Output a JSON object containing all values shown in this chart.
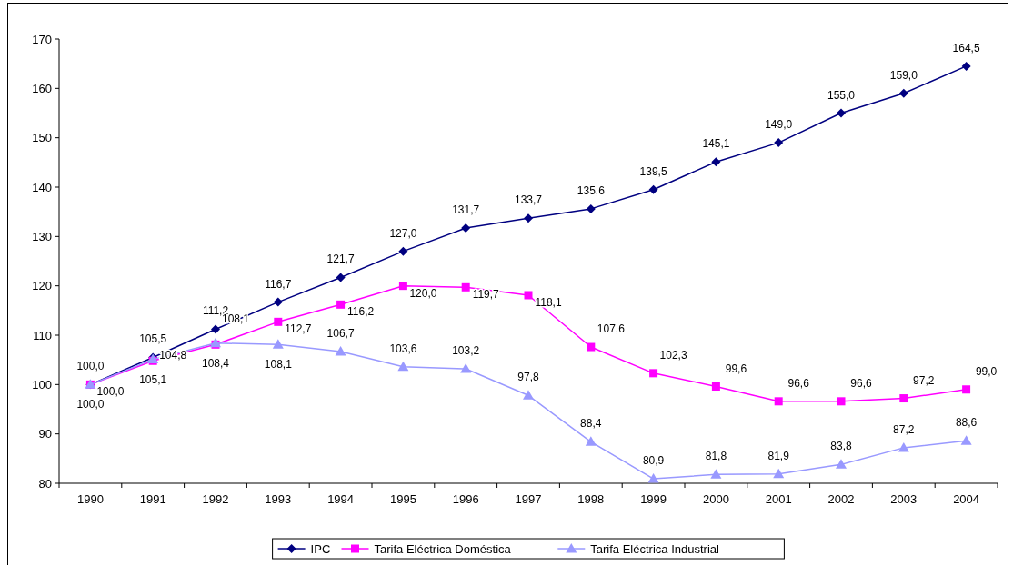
{
  "chart_data": {
    "type": "line",
    "categories": [
      "1990",
      "1991",
      "1992",
      "1993",
      "1994",
      "1995",
      "1996",
      "1997",
      "1998",
      "1999",
      "2000",
      "2001",
      "2002",
      "2003",
      "2004"
    ],
    "ylim": [
      80,
      170
    ],
    "yticks": [
      80,
      90,
      100,
      110,
      120,
      130,
      140,
      150,
      160,
      170
    ],
    "grid": false,
    "legend": "bottom",
    "series": [
      {
        "name": "IPC",
        "color": "#000080",
        "marker": "diamond",
        "values": [
          100.0,
          105.5,
          111.2,
          116.7,
          121.7,
          127.0,
          131.7,
          133.7,
          135.6,
          139.5,
          145.1,
          149.0,
          155.0,
          159.0,
          164.5
        ],
        "value_labels": [
          "100,0",
          "105,5",
          "111,2",
          "116,7",
          "121,7",
          "127,0",
          "131,7",
          "133,7",
          "135,6",
          "139,5",
          "145,1",
          "149,0",
          "155,0",
          "159,0",
          "164,5"
        ]
      },
      {
        "name": "Tarifa Eléctrica Doméstica",
        "color": "#ff00ff",
        "marker": "square",
        "values": [
          100.0,
          104.8,
          108.1,
          112.7,
          116.2,
          120.0,
          119.7,
          118.1,
          107.6,
          102.3,
          99.6,
          96.6,
          96.6,
          97.2,
          99.0
        ],
        "value_labels": [
          "100,0",
          "104,8",
          "108,1",
          "112,7",
          "116,2",
          "120,0",
          "119,7",
          "118,1",
          "107,6",
          "102,3",
          "99,6",
          "96,6",
          "96,6",
          "97,2",
          "99,0"
        ]
      },
      {
        "name": "Tarifa Eléctrica Industrial",
        "color": "#9999ff",
        "marker": "triangle",
        "values": [
          100.0,
          105.1,
          108.4,
          108.1,
          106.7,
          103.6,
          103.2,
          97.8,
          88.4,
          80.9,
          81.8,
          81.9,
          83.8,
          87.2,
          88.6
        ],
        "value_labels": [
          "100,0",
          "105,1",
          "108,4",
          "108,1",
          "106,7",
          "103,6",
          "103,2",
          "97,8",
          "88,4",
          "80,9",
          "81,8",
          "81,9",
          "83,8",
          "87,2",
          "88,6"
        ]
      }
    ]
  }
}
